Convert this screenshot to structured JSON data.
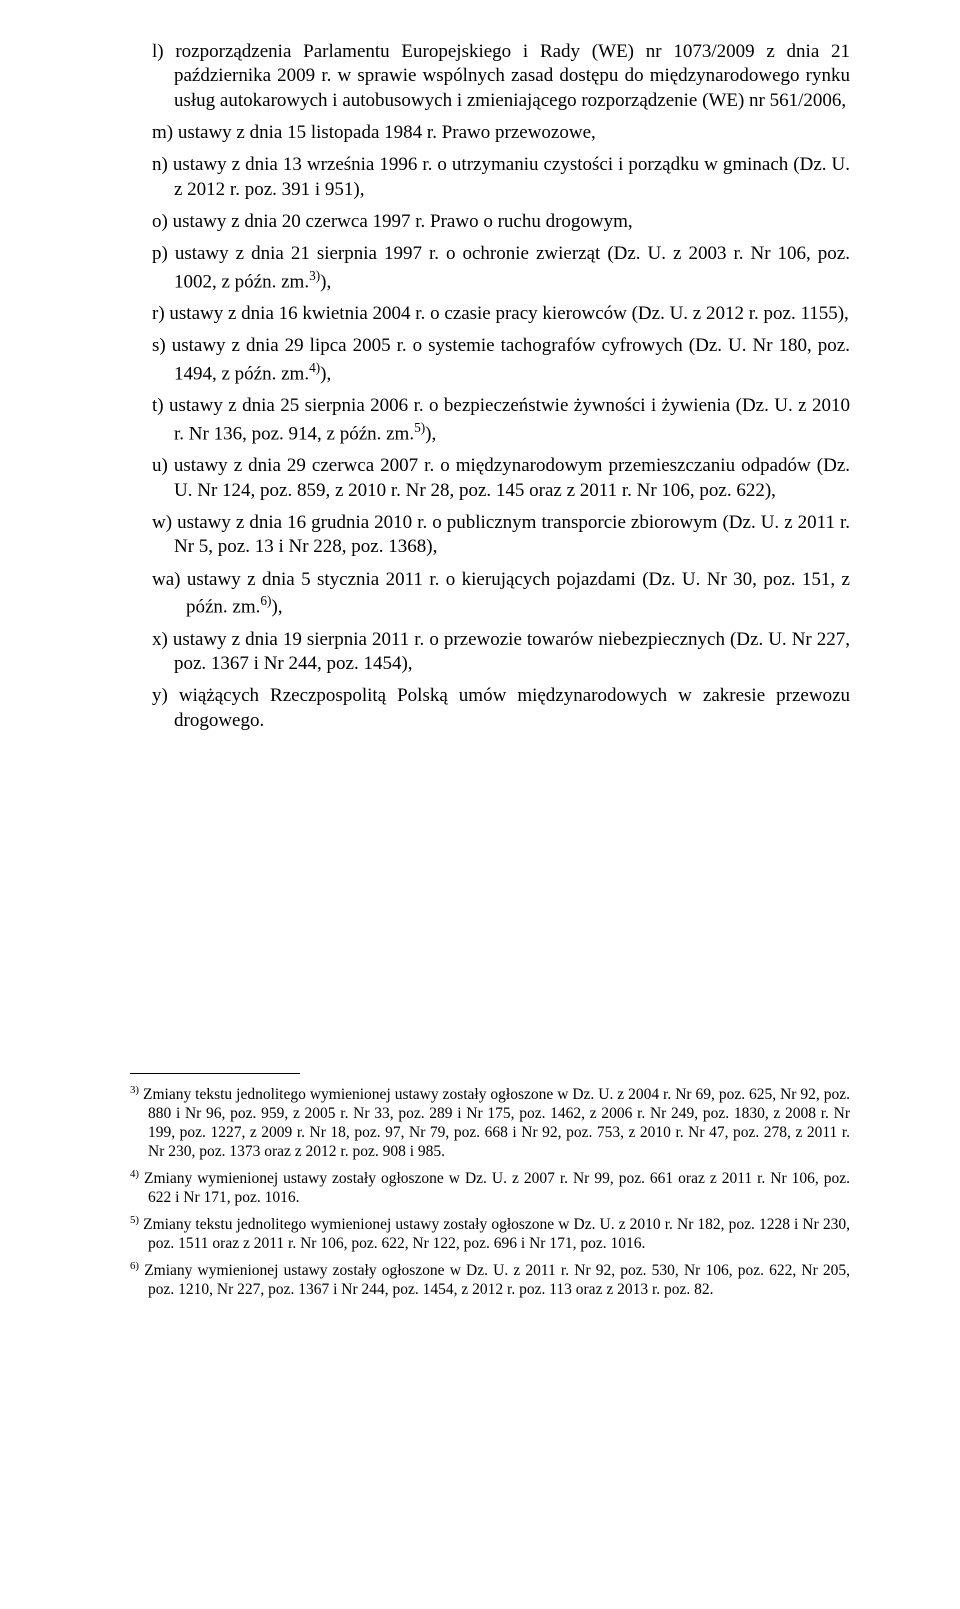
{
  "items": {
    "l": "l) rozporządzenia Parlamentu Europejskiego i Rady (WE) nr 1073/2009 z dnia 21 października 2009 r. w sprawie wspólnych zasad dostępu do międzynarodowego rynku usług autokarowych i autobusowych i zmieniającego rozporządzenie (WE) nr 561/2006,",
    "m": "m) ustawy z dnia 15 listopada 1984 r. Prawo przewozowe,",
    "n": "n) ustawy z dnia 13 września 1996 r. o utrzymaniu czystości i porządku w gminach (Dz. U. z 2012 r. poz. 391 i 951),",
    "o": "o) ustawy z dnia 20 czerwca 1997 r. Prawo o ruchu drogowym,",
    "p_pre": "p) ustawy z dnia 21 sierpnia 1997 r. o ochronie zwierząt (Dz. U. z 2003 r. Nr 106, poz. 1002, z późn. zm.",
    "p_sup": "3)",
    "p_post": "),",
    "r": "r) ustawy z dnia 16 kwietnia 2004 r. o czasie pracy kierowców (Dz. U. z 2012 r. poz. 1155),",
    "s_pre": "s) ustawy z dnia 29 lipca 2005 r. o systemie tachografów cyfrowych (Dz. U. Nr 180, poz. 1494, z późn. zm.",
    "s_sup": "4)",
    "s_post": "),",
    "t_pre": "t) ustawy z dnia 25 sierpnia 2006 r. o bezpieczeństwie żywności i żywienia (Dz. U. z 2010 r. Nr 136, poz. 914, z późn. zm.",
    "t_sup": "5)",
    "t_post": "),",
    "u": "u) ustawy z dnia 29 czerwca 2007 r. o międzynarodowym przemieszczaniu odpadów (Dz. U. Nr 124, poz. 859, z 2010 r. Nr 28, poz. 145 oraz z 2011 r. Nr 106, poz. 622),",
    "w": "w) ustawy z dnia 16 grudnia 2010 r. o publicznym transporcie zbiorowym (Dz. U. z 2011 r. Nr 5, poz. 13 i Nr 228, poz. 1368),",
    "wa_pre": "wa) ustawy z dnia 5 stycznia 2011 r. o kierujących pojazdami (Dz. U. Nr 30, poz. 151, z późn. zm.",
    "wa_sup": "6)",
    "wa_post": "),",
    "x": "x) ustawy z dnia 19 sierpnia 2011 r. o przewozie towarów niebezpiecznych (Dz. U. Nr 227, poz. 1367 i Nr 244, poz. 1454),",
    "y": "y) wiążących Rzeczpospolitą Polską umów międzynarodowych w zakresie przewozu drogowego."
  },
  "footnotes": {
    "f3_sup": "3)",
    "f3": " Zmiany tekstu jednolitego wymienionej ustawy zostały ogłoszone w Dz. U. z 2004 r. Nr 69, poz. 625, Nr 92, poz. 880 i Nr 96, poz. 959, z 2005 r. Nr 33, poz. 289 i Nr 175, poz. 1462, z 2006 r. Nr 249, poz. 1830, z 2008 r. Nr 199, poz. 1227, z 2009 r. Nr 18, poz. 97, Nr 79, poz. 668 i Nr 92, poz. 753, z 2010 r. Nr 47, poz. 278, z 2011 r. Nr 230, poz. 1373 oraz z 2012 r. poz. 908 i 985.",
    "f4_sup": "4)",
    "f4": " Zmiany wymienionej ustawy zostały ogłoszone w Dz. U. z 2007 r. Nr 99, poz. 661 oraz z 2011 r. Nr 106, poz. 622 i Nr 171, poz. 1016.",
    "f5_sup": "5)",
    "f5": " Zmiany tekstu jednolitego wymienionej ustawy zostały ogłoszone w Dz. U. z 2010 r. Nr 182, poz. 1228 i Nr 230, poz. 1511 oraz z 2011 r. Nr 106, poz. 622, Nr 122, poz. 696 i Nr 171, poz. 1016.",
    "f6_sup": "6)",
    "f6": " Zmiany wymienionej ustawy zostały ogłoszone w Dz. U. z 2011 r. Nr 92, poz. 530, Nr 106, poz. 622, Nr 205, poz. 1210, Nr 227, poz. 1367 i Nr 244, poz. 1454, z 2012 r. poz. 113 oraz z 2013 r. poz. 82."
  }
}
